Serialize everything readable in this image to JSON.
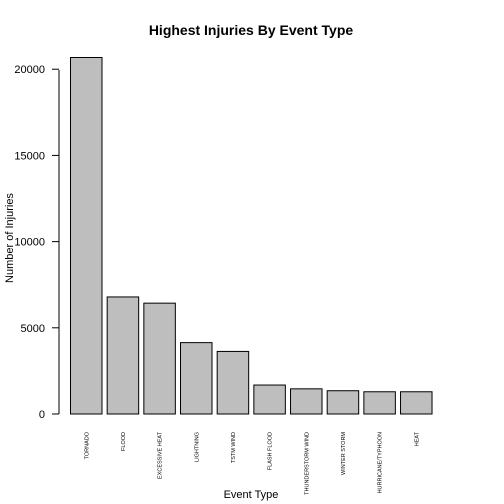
{
  "chart_data": {
    "type": "bar",
    "title": "Highest Injuries By Event Type",
    "xlabel": "Event Type",
    "ylabel": "Number of Injuries",
    "categories": [
      "TORNADO",
      "FLOOD",
      "EXCESSIVE HEAT",
      "LIGHTNING",
      "TSTM WIND",
      "FLASH FLOOD",
      "THUNDERSTORM WIND",
      "WINTER STORM",
      "HURRICANE/TYPHOON",
      "HEAT"
    ],
    "values": [
      20680,
      6790,
      6430,
      4140,
      3630,
      1680,
      1460,
      1350,
      1290,
      1290
    ],
    "ylim": [
      0,
      20680
    ],
    "yticks": [
      0,
      5000,
      10000,
      15000,
      20000
    ],
    "grid": false,
    "colors": {
      "bar_fill": "#BEBEBE",
      "bar_stroke": "#000000"
    }
  }
}
